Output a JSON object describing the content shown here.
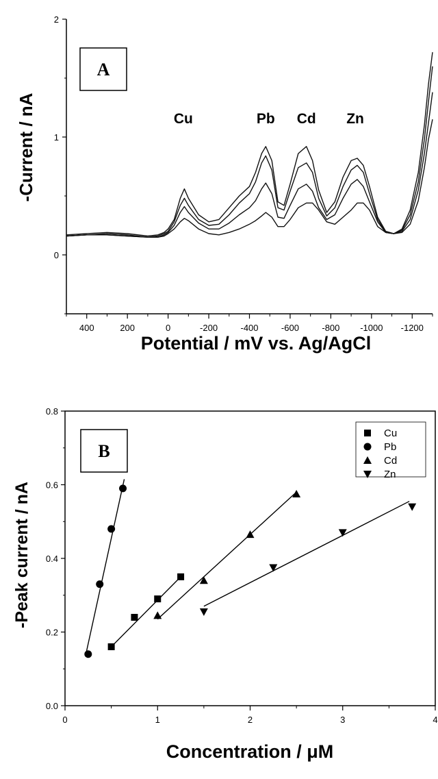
{
  "chart_data": [
    {
      "panel": "A",
      "type": "line",
      "xlabel": "Potential / mV vs. Ag/AgCl",
      "ylabel": "-Current / nA",
      "xlim": [
        500,
        -1300
      ],
      "ylim": [
        -0.5,
        2
      ],
      "x_ticks": [
        400,
        200,
        0,
        -200,
        -400,
        -600,
        -800,
        -1000,
        -1200
      ],
      "y_ticks": [
        0,
        1,
        2
      ],
      "x_axis_reversed": true,
      "peak_labels": [
        {
          "text": "Cu",
          "x": -75
        },
        {
          "text": "Pb",
          "x": -480
        },
        {
          "text": "Cd",
          "x": -680
        },
        {
          "text": "Zn",
          "x": -920
        }
      ],
      "x": [
        500,
        400,
        300,
        200,
        100,
        50,
        20,
        0,
        -30,
        -60,
        -80,
        -100,
        -150,
        -200,
        -250,
        -300,
        -350,
        -400,
        -430,
        -460,
        -480,
        -510,
        -540,
        -570,
        -600,
        -640,
        -680,
        -710,
        -740,
        -780,
        -820,
        -860,
        -900,
        -930,
        -960,
        -990,
        -1030,
        -1070,
        -1110,
        -1150,
        -1190,
        -1230,
        -1260,
        -1280,
        -1300
      ],
      "series": [
        {
          "values": [
            0.17,
            0.18,
            0.19,
            0.18,
            0.16,
            0.17,
            0.19,
            0.22,
            0.3,
            0.48,
            0.56,
            0.48,
            0.34,
            0.28,
            0.3,
            0.4,
            0.5,
            0.58,
            0.7,
            0.86,
            0.92,
            0.8,
            0.45,
            0.42,
            0.6,
            0.86,
            0.92,
            0.8,
            0.55,
            0.36,
            0.45,
            0.66,
            0.8,
            0.82,
            0.76,
            0.58,
            0.32,
            0.2,
            0.18,
            0.22,
            0.38,
            0.7,
            1.1,
            1.45,
            1.72
          ]
        },
        {
          "values": [
            0.16,
            0.17,
            0.18,
            0.17,
            0.15,
            0.16,
            0.18,
            0.2,
            0.28,
            0.42,
            0.48,
            0.42,
            0.3,
            0.25,
            0.26,
            0.34,
            0.44,
            0.52,
            0.62,
            0.78,
            0.84,
            0.72,
            0.4,
            0.38,
            0.54,
            0.74,
            0.78,
            0.7,
            0.48,
            0.33,
            0.4,
            0.58,
            0.72,
            0.76,
            0.7,
            0.52,
            0.3,
            0.19,
            0.18,
            0.21,
            0.34,
            0.62,
            0.98,
            1.3,
            1.6
          ]
        },
        {
          "values": [
            0.16,
            0.17,
            0.17,
            0.16,
            0.15,
            0.15,
            0.17,
            0.19,
            0.25,
            0.36,
            0.41,
            0.36,
            0.27,
            0.22,
            0.22,
            0.27,
            0.34,
            0.4,
            0.46,
            0.56,
            0.61,
            0.52,
            0.32,
            0.31,
            0.42,
            0.56,
            0.6,
            0.54,
            0.4,
            0.3,
            0.34,
            0.48,
            0.6,
            0.64,
            0.58,
            0.45,
            0.28,
            0.19,
            0.18,
            0.2,
            0.3,
            0.55,
            0.86,
            1.12,
            1.38
          ]
        },
        {
          "values": [
            0.16,
            0.17,
            0.17,
            0.16,
            0.15,
            0.15,
            0.16,
            0.18,
            0.22,
            0.28,
            0.31,
            0.29,
            0.22,
            0.18,
            0.17,
            0.19,
            0.22,
            0.26,
            0.29,
            0.33,
            0.36,
            0.32,
            0.24,
            0.24,
            0.3,
            0.4,
            0.44,
            0.44,
            0.38,
            0.28,
            0.26,
            0.32,
            0.38,
            0.44,
            0.44,
            0.38,
            0.24,
            0.19,
            0.18,
            0.19,
            0.26,
            0.46,
            0.74,
            0.98,
            1.15
          ]
        }
      ]
    },
    {
      "panel": "B",
      "type": "scatter",
      "xlabel": "Concentration / μM",
      "ylabel": "-Peak current / nA",
      "xlim": [
        0,
        4
      ],
      "ylim": [
        0.0,
        0.8
      ],
      "x_ticks": [
        0,
        1,
        2,
        3,
        4
      ],
      "y_ticks": [
        "0.0",
        "0.2",
        "0.4",
        "0.6",
        "0.8"
      ],
      "legend_position": "top-right",
      "series": [
        {
          "name": "Cu",
          "marker": "square",
          "x": [
            0.5,
            0.75,
            1.0,
            1.25
          ],
          "values": [
            0.16,
            0.24,
            0.29,
            0.35
          ],
          "fit": [
            [
              0.5,
              0.16
            ],
            [
              1.25,
              0.35
            ]
          ]
        },
        {
          "name": "Pb",
          "marker": "circle",
          "x": [
            0.25,
            0.375,
            0.5,
            0.625
          ],
          "values": [
            0.14,
            0.33,
            0.48,
            0.59
          ],
          "fit": [
            [
              0.23,
              0.145
            ],
            [
              0.64,
              0.615
            ]
          ]
        },
        {
          "name": "Cd",
          "marker": "triangle-up",
          "x": [
            1.0,
            1.5,
            2.0,
            2.5
          ],
          "values": [
            0.245,
            0.34,
            0.465,
            0.575
          ],
          "fit": [
            [
              1.0,
              0.235
            ],
            [
              2.5,
              0.58
            ]
          ]
        },
        {
          "name": "Zn",
          "marker": "triangle-down",
          "x": [
            1.5,
            2.25,
            3.0,
            3.75
          ],
          "values": [
            0.255,
            0.375,
            0.47,
            0.54
          ],
          "fit": [
            [
              1.5,
              0.27
            ],
            [
              3.72,
              0.555
            ]
          ]
        }
      ]
    }
  ],
  "panel_letters": [
    "A",
    "B"
  ]
}
